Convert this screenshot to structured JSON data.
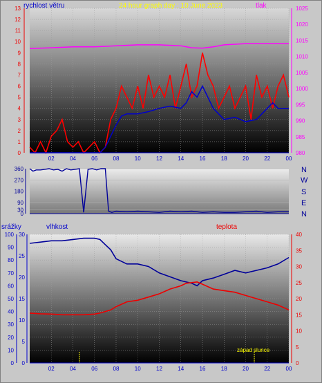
{
  "header": {
    "title": "24 hour graph day : 10 June 2023",
    "wind_label": "rychlost větru",
    "pressure_label": "tlak"
  },
  "lower_header": {
    "rain_label": "srážky",
    "humidity_label": "vlhkost",
    "temp_label": "teplota"
  },
  "annotation": {
    "sunset_label": "západ slunce"
  },
  "direction_labels": [
    "N",
    "W",
    "S",
    "E",
    "N"
  ],
  "colors": {
    "wind_speed": "#ff0000",
    "wind_avg": "#0000cc",
    "pressure": "#ff00ff",
    "humidity": "#000099",
    "temperature": "#ee0000",
    "title": "#ffff00",
    "sunrise_sunset_marker": "#ffff00"
  },
  "chart_data": [
    {
      "type": "line",
      "name": "wind-pressure",
      "title": "24 hour graph day : 10 June 2023",
      "xlabel": "",
      "ylabel_left": "rychlost větru",
      "ylabel_right": "tlak",
      "x_ticks": [
        "02",
        "04",
        "06",
        "08",
        "10",
        "12",
        "14",
        "16",
        "18",
        "20",
        "22",
        "00"
      ],
      "ylim_left": [
        0,
        13
      ],
      "y_ticks_left": [
        0,
        1,
        2,
        3,
        4,
        5,
        6,
        7,
        8,
        9,
        10,
        11,
        12,
        13
      ],
      "ylim_right": [
        980,
        1025
      ],
      "y_ticks_right": [
        980,
        985,
        990,
        995,
        1000,
        1005,
        1010,
        1015,
        1020,
        1025
      ],
      "series": [
        {
          "name": "rychlost větru",
          "axis": "left",
          "color": "#ff0000",
          "x": [
            0,
            0.5,
            1,
            1.5,
            2,
            2.5,
            3,
            3.5,
            4,
            4.5,
            5,
            5.5,
            6,
            6.5,
            7,
            7.5,
            8,
            8.5,
            9,
            9.5,
            10,
            10.5,
            11,
            11.5,
            12,
            12.5,
            13,
            13.5,
            14,
            14.5,
            15,
            15.5,
            16,
            16.5,
            17,
            17.5,
            18,
            18.5,
            19,
            19.5,
            20,
            20.5,
            21,
            21.5,
            22,
            22.5,
            23,
            23.5,
            24
          ],
          "values": [
            0.5,
            0,
            1,
            0,
            1.5,
            2,
            3,
            1,
            0.5,
            1,
            0,
            0.5,
            1,
            0,
            0.5,
            3,
            4,
            6,
            5,
            4,
            6,
            4,
            7,
            5,
            6,
            5,
            7,
            4,
            6,
            8,
            5,
            6,
            9,
            7,
            6,
            4,
            5,
            6,
            4,
            5,
            6,
            3,
            7,
            5,
            6,
            4,
            6,
            7,
            5
          ]
        },
        {
          "name": "",
          "axis": "left",
          "color": "#0000cc",
          "x": [
            0,
            1,
            2,
            3,
            4,
            5,
            6,
            6.5,
            7,
            7.5,
            8,
            8.5,
            9,
            9.5,
            10,
            11,
            12,
            13,
            14,
            14.5,
            15,
            15.5,
            16,
            16.5,
            17,
            17.5,
            18,
            19,
            20,
            21,
            22,
            22.5,
            23,
            24
          ],
          "values": [
            0,
            0,
            0,
            0,
            0,
            0,
            0,
            0,
            0.5,
            1.5,
            2.5,
            3.3,
            3.5,
            3.5,
            3.5,
            3.7,
            4,
            4.2,
            4,
            4.5,
            5.5,
            5,
            6,
            5,
            4,
            3.5,
            3,
            3.2,
            2.8,
            3,
            4,
            4.5,
            4,
            4
          ]
        },
        {
          "name": "tlak",
          "axis": "right",
          "color": "#ff00ff",
          "x": [
            0,
            2,
            4,
            6,
            8,
            10,
            12,
            14,
            15,
            16,
            17,
            18,
            20,
            22,
            24
          ],
          "values": [
            1012.5,
            1012.7,
            1013,
            1013,
            1013.3,
            1013.6,
            1013.6,
            1013.3,
            1012.7,
            1012.6,
            1013,
            1013.6,
            1014,
            1014,
            1014
          ]
        }
      ]
    },
    {
      "type": "line",
      "name": "wind-direction",
      "x_ticks": [],
      "ylim": [
        0,
        360
      ],
      "y_ticks": [
        0,
        30,
        90,
        180,
        270,
        360
      ],
      "direction_labels": [
        "N",
        "W",
        "S",
        "E",
        "N"
      ],
      "series": [
        {
          "name": "",
          "color": "#000099",
          "x": [
            0,
            0.3,
            0.6,
            1,
            1.4,
            1.8,
            2.2,
            2.6,
            3,
            3.4,
            3.8,
            4.2,
            4.6,
            5,
            5.4,
            5.8,
            6.2,
            6.6,
            7,
            7.3,
            7.6,
            8,
            9,
            10,
            11,
            12,
            13,
            14,
            15,
            16,
            17,
            18,
            19,
            20,
            21,
            22,
            23,
            24
          ],
          "values": [
            360,
            340,
            350,
            350,
            355,
            360,
            350,
            355,
            340,
            360,
            350,
            355,
            360,
            10,
            355,
            360,
            350,
            360,
            360,
            20,
            10,
            20,
            15,
            20,
            15,
            10,
            20,
            15,
            20,
            10,
            15,
            10,
            10,
            15,
            20,
            10,
            15,
            15
          ]
        }
      ]
    },
    {
      "type": "line",
      "name": "rain-humidity-temperature",
      "xlabel": "",
      "ylabel_left": "srážky",
      "ylabel_mid": "vlhkost",
      "ylabel_right": "teplota",
      "x_ticks": [
        "02",
        "04",
        "06",
        "08",
        "10",
        "12",
        "14",
        "16",
        "18",
        "20",
        "22",
        "00"
      ],
      "ylim_left": [
        0,
        100
      ],
      "y_ticks_left": [
        0,
        10,
        20,
        30,
        40,
        50,
        60,
        70,
        80,
        90,
        100
      ],
      "ylim_mid": [
        0,
        30
      ],
      "y_ticks_mid": [
        0,
        5,
        10,
        15,
        20,
        25,
        30
      ],
      "ylim_right": [
        0,
        40
      ],
      "y_ticks_right": [
        0,
        5,
        10,
        15,
        20,
        25,
        30,
        35,
        40
      ],
      "series": [
        {
          "name": "vlhkost",
          "axis": "left",
          "color": "#000099",
          "x": [
            0,
            1,
            2,
            3,
            4,
            5,
            6,
            6.5,
            7,
            7.5,
            8,
            9,
            10,
            11,
            12,
            13,
            14,
            15,
            15.5,
            16,
            17,
            18,
            19,
            20,
            21,
            22,
            23,
            24
          ],
          "values": [
            93,
            94,
            95,
            95,
            96,
            97,
            97,
            96,
            92,
            88,
            81,
            77,
            77,
            75,
            70,
            67,
            64,
            62,
            60,
            64,
            66,
            69,
            72,
            70,
            72,
            74,
            77,
            82
          ]
        },
        {
          "name": "teplota",
          "axis": "right",
          "color": "#ee0000",
          "x": [
            0,
            1,
            2,
            3,
            4,
            5,
            6,
            6.5,
            7,
            7.5,
            8,
            9,
            10,
            11,
            12,
            13,
            14,
            14.5,
            15,
            15.5,
            16,
            17,
            18,
            19,
            20,
            21,
            22,
            23,
            24
          ],
          "values": [
            15.5,
            15.3,
            15.2,
            15,
            15,
            15,
            15.2,
            15.5,
            16,
            16.5,
            17.5,
            19,
            19.5,
            20.5,
            21.5,
            23,
            24,
            24.8,
            25,
            25.2,
            24.5,
            23,
            22.5,
            22,
            21,
            20,
            19,
            18,
            16.5
          ]
        }
      ],
      "markers": [
        {
          "label": "",
          "x": 4.6,
          "color": "#ffff00"
        },
        {
          "label": "západ slunce",
          "x": 20.8,
          "color": "#ffff00"
        }
      ]
    }
  ]
}
